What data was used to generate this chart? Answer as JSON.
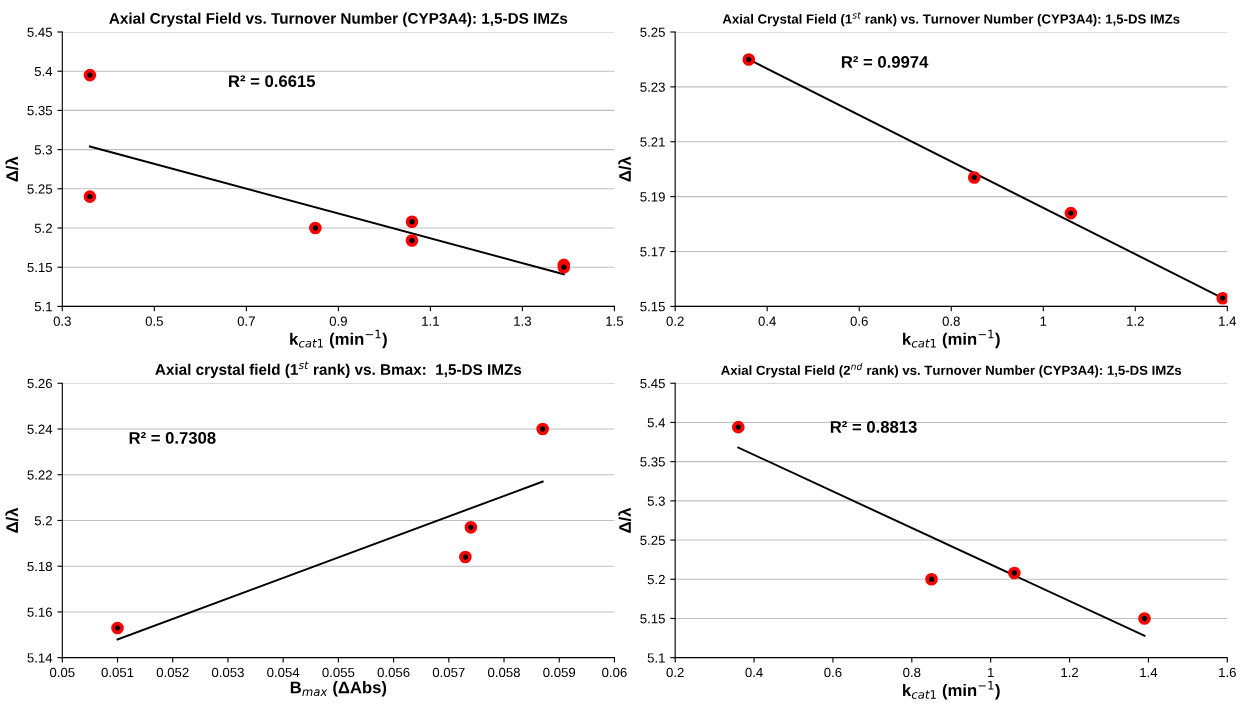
{
  "chart_data": [
    {
      "type": "scatter",
      "title": "Axial Crystal Field vs. Turnover Number (CYP3A4): 1,5-DS IMZs",
      "xlabel": "k$_{cat1}$ (min$^{−1}$)",
      "ylabel": "Δ/λ",
      "annotations": [
        "R² = 0.6615"
      ],
      "xlim": [
        0.3,
        1.5
      ],
      "xticks": [
        0.3,
        0.5,
        0.7,
        0.9,
        1.1,
        1.3,
        1.5
      ],
      "ylim": [
        5.1,
        5.45
      ],
      "yticks": [
        5.1,
        5.15,
        5.2,
        5.25,
        5.3,
        5.35,
        5.4,
        5.45
      ],
      "grid": "y",
      "series": [
        {
          "marker": "circle",
          "color": "#ff0000",
          "x": [
            0.36,
            0.36,
            0.85,
            1.06,
            1.06,
            1.39,
            1.39
          ],
          "values": [
            5.395,
            5.24,
            5.2,
            5.208,
            5.184,
            5.153,
            5.15
          ]
        },
        {
          "type": "line",
          "color": "#000000",
          "x": [
            0.36,
            1.39
          ],
          "values": [
            5.304,
            5.141
          ]
        }
      ]
    },
    {
      "type": "scatter",
      "title": "Axial Crystal Field (1$^{st}$ rank) vs. Turnover Number (CYP3A4): 1,5-DS IMZs",
      "xlabel": "k$_{cat1}$ (min$^{−1}$)",
      "ylabel": "Δ/λ",
      "annotations": [
        "R² = 0.9974"
      ],
      "xlim": [
        0.2,
        1.4
      ],
      "xticks": [
        0.2,
        0.4,
        0.6,
        0.8,
        1,
        1.2,
        1.4
      ],
      "ylim": [
        5.15,
        5.25
      ],
      "yticks": [
        5.15,
        5.17,
        5.19,
        5.21,
        5.23,
        5.25
      ],
      "grid": "y",
      "series": [
        {
          "marker": "circle",
          "color": "#ff0000",
          "x": [
            0.36,
            0.85,
            1.06,
            1.39
          ],
          "values": [
            5.24,
            5.197,
            5.184,
            5.153
          ]
        },
        {
          "type": "line",
          "color": "#000000",
          "x": [
            0.36,
            1.39
          ],
          "values": [
            5.24,
            5.153
          ]
        }
      ]
    },
    {
      "type": "scatter",
      "title": "Axial crystal field (1$^{st}$ rank) vs. Bmax:  1,5-DS IMZs",
      "xlabel": "B$_{max}$ (ΔAbs)",
      "ylabel": "Δ/λ",
      "annotations": [
        "R² = 0.7308"
      ],
      "xlim": [
        0.05,
        0.06
      ],
      "xticks": [
        0.05,
        0.051,
        0.052,
        0.053,
        0.054,
        0.055,
        0.056,
        0.057,
        0.058,
        0.059,
        0.06
      ],
      "ylim": [
        5.14,
        5.26
      ],
      "yticks": [
        5.14,
        5.16,
        5.18,
        5.2,
        5.22,
        5.24,
        5.26
      ],
      "grid": "y",
      "series": [
        {
          "marker": "circle",
          "color": "#ff0000",
          "x": [
            0.051,
            0.0574,
            0.0573,
            0.0587
          ],
          "values": [
            5.153,
            5.197,
            5.184,
            5.24
          ]
        },
        {
          "type": "line",
          "color": "#000000",
          "x": [
            0.051,
            0.0587
          ],
          "values": [
            5.148,
            5.217
          ]
        }
      ]
    },
    {
      "type": "scatter",
      "title": "Axial Crystal Field (2$^{nd}$ rank) vs. Turnover Number (CYP3A4): 1,5-DS IMZs",
      "xlabel": "k$_{cat1}$ (min$^{−1}$)",
      "ylabel": "Δ/λ",
      "annotations": [
        "R² = 0.8813"
      ],
      "xlim": [
        0.2,
        1.6
      ],
      "xticks": [
        0.2,
        0.4,
        0.6,
        0.8,
        1,
        1.2,
        1.4,
        1.6
      ],
      "ylim": [
        5.1,
        5.45
      ],
      "yticks": [
        5.1,
        5.15,
        5.2,
        5.25,
        5.3,
        5.35,
        5.4,
        5.45
      ],
      "grid": "y",
      "series": [
        {
          "marker": "circle",
          "color": "#ff0000",
          "x": [
            0.36,
            0.85,
            1.06,
            1.39
          ],
          "values": [
            5.394,
            5.2,
            5.208,
            5.15
          ]
        },
        {
          "type": "line",
          "color": "#000000",
          "x": [
            0.36,
            1.39
          ],
          "values": [
            5.368,
            5.128
          ]
        }
      ]
    }
  ]
}
